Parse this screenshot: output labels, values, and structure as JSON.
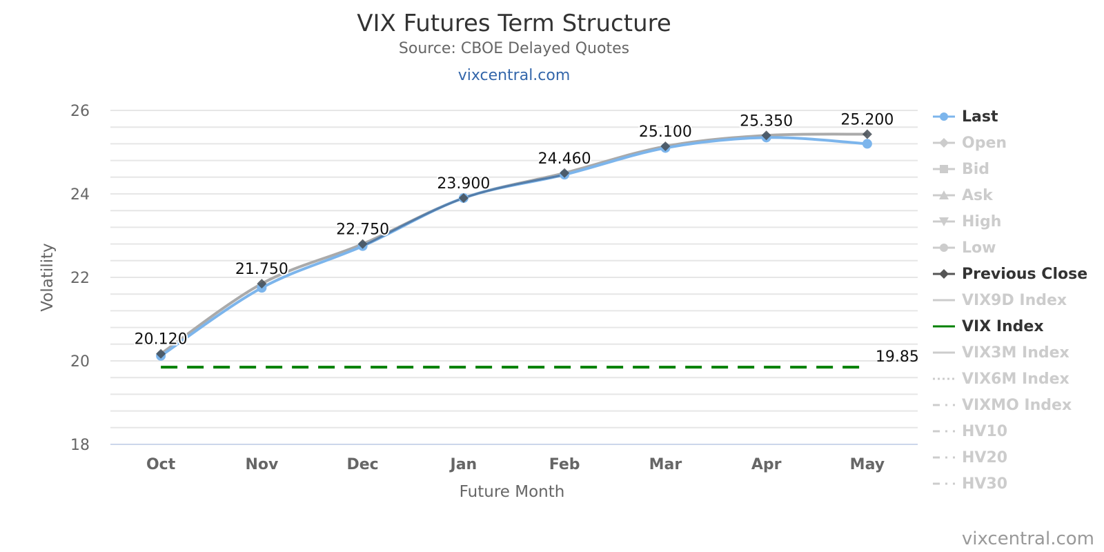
{
  "header": {
    "title": "VIX Futures Term Structure",
    "subtitle": "Source: CBOE Delayed Quotes",
    "link": "vixcentral.com"
  },
  "credits": "vixcentral.com",
  "colors": {
    "last": "#7cb5ec",
    "previous_close": "#555555",
    "vix_index": "#008000",
    "grid": "#e6e6e6",
    "legend_active": "#333333",
    "legend_inactive": "#cccccc"
  },
  "legend": [
    {
      "label": "Last",
      "active": true,
      "symbol": "line-circle",
      "color": "#7cb5ec"
    },
    {
      "label": "Open",
      "active": false,
      "symbol": "line-diamond"
    },
    {
      "label": "Bid",
      "active": false,
      "symbol": "line-square"
    },
    {
      "label": "Ask",
      "active": false,
      "symbol": "line-triangle"
    },
    {
      "label": "High",
      "active": false,
      "symbol": "line-triangle-down"
    },
    {
      "label": "Low",
      "active": false,
      "symbol": "line-circle"
    },
    {
      "label": "Previous Close",
      "active": true,
      "symbol": "line-diamond",
      "color": "#555555"
    },
    {
      "label": "VIX9D Index",
      "active": false,
      "symbol": "line"
    },
    {
      "label": "VIX Index",
      "active": true,
      "symbol": "line",
      "color": "#008000"
    },
    {
      "label": "VIX3M Index",
      "active": false,
      "symbol": "line"
    },
    {
      "label": "VIX6M Index",
      "active": false,
      "symbol": "dotted"
    },
    {
      "label": "VIXMO Index",
      "active": false,
      "symbol": "dashdot"
    },
    {
      "label": "HV10",
      "active": false,
      "symbol": "dashdot"
    },
    {
      "label": "HV20",
      "active": false,
      "symbol": "dashdot"
    },
    {
      "label": "HV30",
      "active": false,
      "symbol": "dashdot"
    }
  ],
  "chart_data": {
    "type": "line",
    "title": "VIX Futures Term Structure",
    "subtitle": "Source: CBOE Delayed Quotes",
    "xlabel": "Future Month",
    "ylabel": "Volatility",
    "categories": [
      "Oct",
      "Nov",
      "Dec",
      "Jan",
      "Feb",
      "Mar",
      "Apr",
      "May"
    ],
    "ylim": [
      18,
      26
    ],
    "yticks": [
      18,
      20,
      22,
      24,
      26
    ],
    "grid": true,
    "legend_position": "right",
    "series": [
      {
        "name": "Last",
        "values": [
          20.12,
          21.75,
          22.75,
          23.9,
          24.46,
          25.1,
          25.35,
          25.2
        ],
        "data_labels": [
          "20.120",
          "21.750",
          "22.750",
          "23.900",
          "24.460",
          "25.100",
          "25.350",
          "25.200"
        ]
      },
      {
        "name": "Previous Close",
        "values": [
          20.17,
          21.85,
          22.8,
          23.9,
          24.5,
          25.14,
          25.4,
          25.43
        ]
      },
      {
        "name": "VIX Index",
        "values": [
          19.85,
          19.85,
          19.85,
          19.85,
          19.85,
          19.85,
          19.85,
          19.85
        ],
        "end_label": "19.85"
      }
    ]
  }
}
